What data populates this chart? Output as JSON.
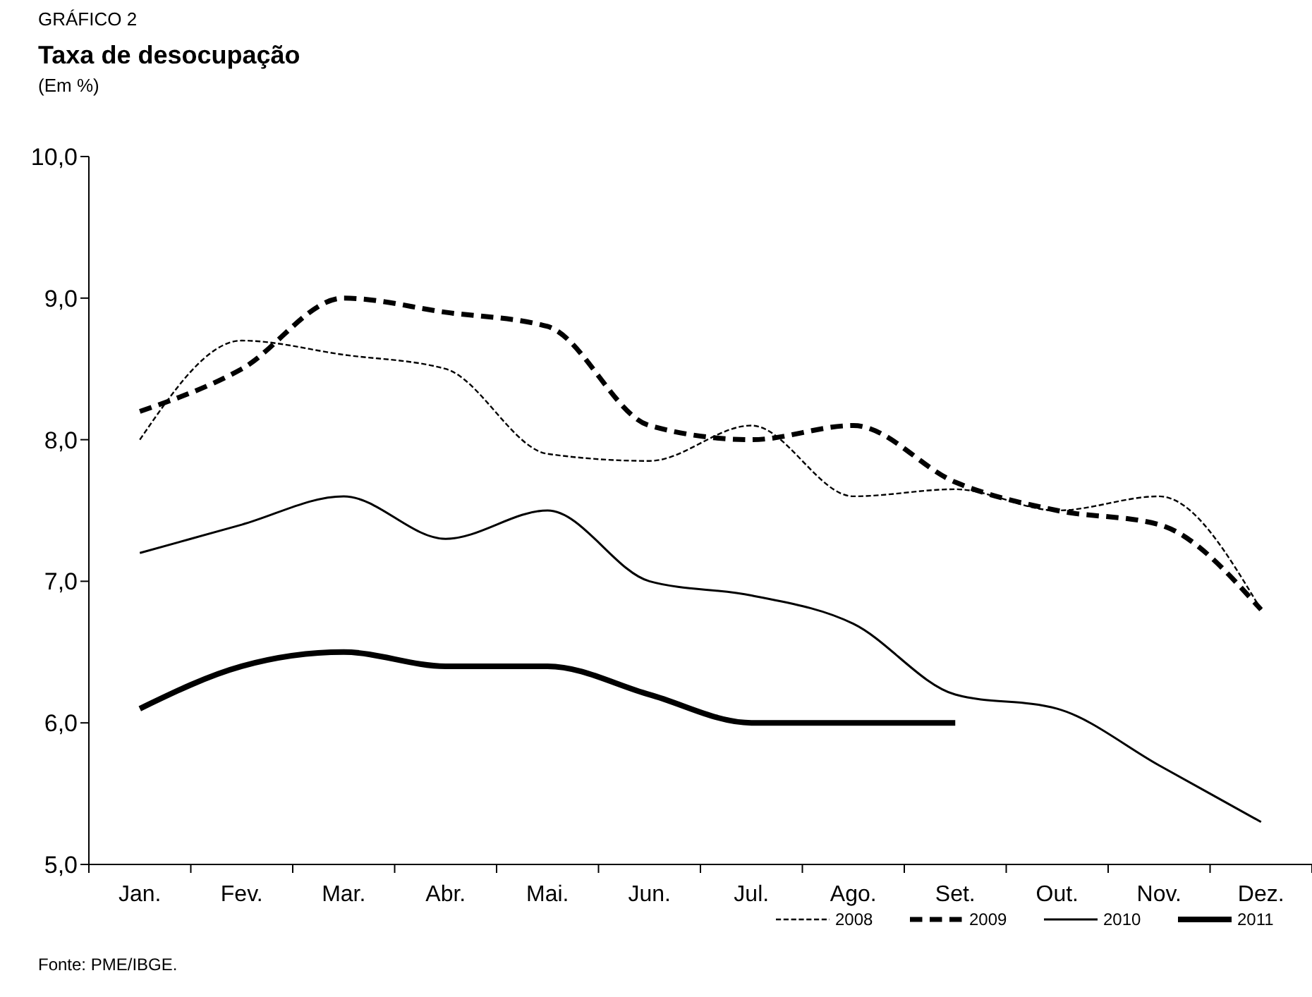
{
  "chart_data": {
    "type": "line",
    "title": "Taxa de desocupação",
    "subtitle": "(Em %)",
    "annotations": [
      "GRÁFICO 2",
      "Fonte: PME/IBGE."
    ],
    "categories": [
      "Jan.",
      "Fev.",
      "Mar.",
      "Abr.",
      "Mai.",
      "Jun.",
      "Jul.",
      "Ago.",
      "Set.",
      "Out.",
      "Nov.",
      "Dez."
    ],
    "ylim": [
      5,
      10
    ],
    "yticks": [
      {
        "value": 5,
        "label": "5,0"
      },
      {
        "value": 6,
        "label": "6,0"
      },
      {
        "value": 7,
        "label": "7,0"
      },
      {
        "value": 8,
        "label": "8,0"
      },
      {
        "value": 9,
        "label": "9,0"
      },
      {
        "value": 10,
        "label": "10,0"
      }
    ],
    "grid": false,
    "legend": "bottom right",
    "marker": "none",
    "series": [
      {
        "name": "2008",
        "color": "#000000",
        "line_style": "dotted",
        "values": [
          8.0,
          8.7,
          8.6,
          8.5,
          7.9,
          7.85,
          8.1,
          7.6,
          7.65,
          7.5,
          7.6,
          6.8
        ]
      },
      {
        "name": "2009",
        "color": "#000000",
        "line_style": "dashed",
        "values": [
          8.2,
          8.5,
          9.0,
          8.9,
          8.8,
          8.1,
          8.0,
          8.1,
          7.7,
          7.5,
          7.4,
          6.8
        ]
      },
      {
        "name": "2010",
        "color": "#000000",
        "line_style": "solid",
        "values": [
          7.2,
          7.4,
          7.6,
          7.3,
          7.5,
          7.0,
          6.9,
          6.7,
          6.2,
          6.1,
          5.7,
          5.3
        ]
      },
      {
        "name": "2011",
        "color": "#000000",
        "line_style": "solid",
        "values": [
          6.1,
          6.4,
          6.5,
          6.4,
          6.4,
          6.2,
          6.0,
          6.0,
          6.0,
          null,
          null,
          null
        ]
      }
    ]
  }
}
